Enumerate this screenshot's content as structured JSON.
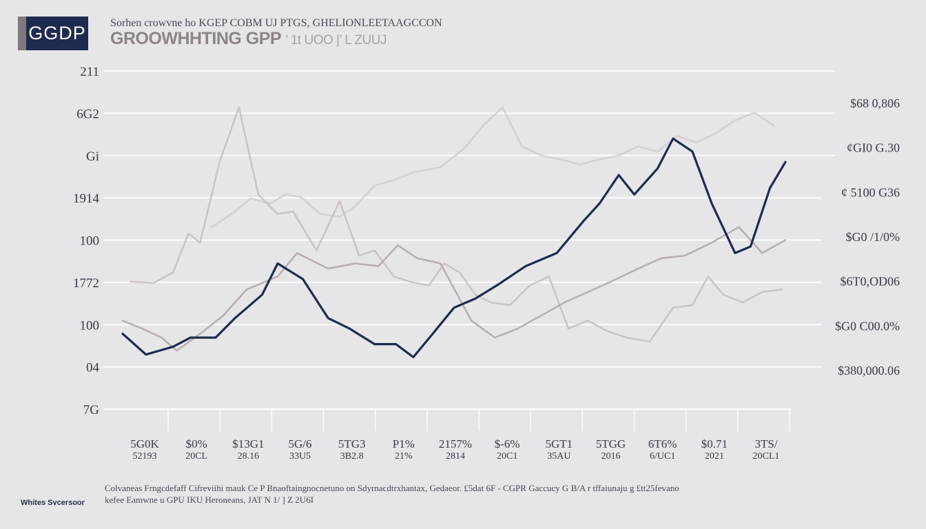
{
  "header": {
    "badge": "GGDP",
    "subtitle": "Sorhen  crowvne  ho  KGEP  COBM  UJ  PTGS,  GHELIONLEETAAGCCON",
    "title": "GROOWHHTING GPP",
    "title_faint": "’ 1t UOO  |’ L ZUUJ"
  },
  "footer": {
    "brand": "Whites Svcersoor",
    "note_line1": "Colvaneas Frngcdefaff Cifreviihi mauk Ce  P Bnaoftaingnocnetuno on Sdyrnacdtrxhantax, Gedaeor. £5dat 6F - CGPR Gaccucy G B/A r tffaiunaju g £tt25fevano",
    "note_line2": "kefee Eamwne u GPU IKU Heroneans,  JAT  N 1/ ] Z 2U6I"
  },
  "chart_data": {
    "type": "line",
    "title": "GROOWHHTING GPP",
    "subtitle": "Sorhen  crowvne  ho  KGEP  COBM  UJ  PTGS,  GHELIONLEETAAGCCON",
    "xlabel": "",
    "ylabel": "",
    "left_ticks": [
      "211",
      "6G2",
      "Gi",
      "1914",
      "100",
      "1772",
      "100",
      "04",
      "7G"
    ],
    "right_ticks": [
      "$68 0,806",
      "¢GI0 G.30",
      "¢ 5100 G36",
      "$G0 /1/0%",
      "$6T0,OD06",
      "$G0 C00.0%",
      "$380,000.06"
    ],
    "x_tick_labels_top": [
      "5G0K",
      "$0%",
      "$13G1",
      "5G/6",
      "5TG3",
      "P1%",
      "2157%",
      "$-6%",
      "5GT1",
      "5TGG",
      "6T6%",
      "$0.71",
      "3TS/"
    ],
    "x_tick_labels_bottom": [
      "52193",
      "20CL",
      "28.16",
      "33U5",
      "3B2.8",
      "21%",
      "2814",
      "20C1",
      "35AU",
      "2016",
      "6/UC1",
      "2021",
      "20CL1"
    ],
    "y_range": [
      0,
      260
    ],
    "grid": true,
    "series": [
      {
        "color": "#1f2b4e",
        "x": [
          0,
          0.6,
          1.3,
          1.75,
          2.4,
          2.9,
          3.6,
          4.0,
          4.65,
          5.3,
          5.85,
          6.5,
          7.05,
          7.5,
          8.0,
          8.55,
          9.1,
          9.7,
          10.4,
          11.2,
          11.9,
          12.3,
          12.8,
          13.2,
          13.8,
          14.2,
          14.7,
          15.2,
          15.8,
          16.2,
          16.7,
          17.1
        ],
        "values": [
          58,
          42,
          48,
          55,
          55,
          70,
          88,
          112,
          100,
          70,
          62,
          50,
          50,
          40,
          58,
          78,
          85,
          96,
          110,
          120,
          145,
          158,
          180,
          165,
          185,
          208,
          198,
          158,
          120,
          125,
          170,
          190
        ]
      },
      {
        "color": "#b6acac",
        "x": [
          0,
          0.5,
          1.0,
          1.4,
          2.0,
          2.6,
          3.2,
          4.0,
          4.5,
          5.3,
          6.0,
          6.6,
          7.1,
          7.6,
          8.2,
          9.0,
          9.6,
          10.2,
          10.8,
          11.4,
          12.0,
          12.6,
          13.3,
          13.9,
          14.5,
          15.2,
          15.9,
          16.5,
          17.1
        ],
        "values": [
          68,
          62,
          55,
          45,
          58,
          72,
          92,
          102,
          120,
          108,
          112,
          110,
          126,
          116,
          112,
          68,
          55,
          62,
          72,
          82,
          90,
          98,
          108,
          116,
          118,
          128,
          140,
          120,
          130
        ]
      },
      {
        "color": "#c4bcbc",
        "x": [
          0.2,
          0.8,
          1.3,
          1.7,
          2.0,
          2.5,
          3.0,
          3.5,
          4.0,
          4.4,
          5.0,
          5.6,
          6.1,
          6.5,
          7.0,
          7.4,
          7.9,
          8.3,
          8.7,
          9.1,
          9.5,
          10.0,
          10.5,
          11.0,
          11.5,
          12.0,
          12.5,
          13.0,
          13.6,
          14.2,
          14.7,
          15.1,
          15.5,
          16.0,
          16.5,
          17.0
        ],
        "values": [
          98,
          97,
          105,
          135,
          128,
          190,
          232,
          165,
          150,
          152,
          122,
          160,
          118,
          122,
          102,
          98,
          95,
          112,
          105,
          88,
          82,
          80,
          95,
          102,
          62,
          68,
          60,
          55,
          52,
          78,
          80,
          102,
          88,
          82,
          90,
          92
        ]
      },
      {
        "color": "#d2cccb",
        "x": [
          2.3,
          2.9,
          3.3,
          3.8,
          4.2,
          4.6,
          5.1,
          5.6,
          6.0,
          6.5,
          7.0,
          7.5,
          8.2,
          8.8,
          9.3,
          9.8,
          10.3,
          10.8,
          11.3,
          11.8,
          12.3,
          12.8,
          13.3,
          13.8,
          14.3,
          14.8,
          15.3,
          15.8,
          16.3,
          16.8
        ],
        "values": [
          140,
          152,
          162,
          158,
          165,
          163,
          150,
          148,
          156,
          172,
          176,
          182,
          186,
          200,
          218,
          232,
          202,
          195,
          192,
          188,
          192,
          195,
          202,
          198,
          210,
          205,
          212,
          222,
          228,
          218
        ]
      }
    ]
  }
}
